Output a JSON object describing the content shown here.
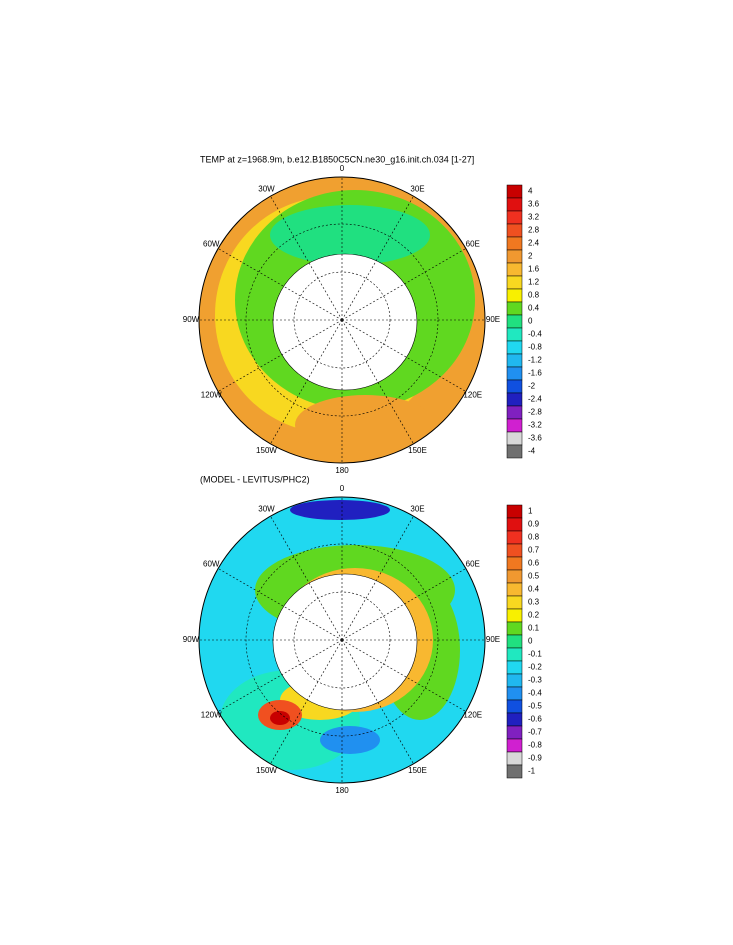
{
  "maps": [
    {
      "title": "TEMP at z=1968.9m, b.e12.B1850C5CN.ne30_g16.init.ch.034 [1-27]",
      "lon_labels": [
        "0",
        "30E",
        "60E",
        "90E",
        "120E",
        "150E",
        "180",
        "150W",
        "120W",
        "90W",
        "60W",
        "30W"
      ],
      "colorbar": {
        "labels": [
          "4",
          "3.6",
          "3.2",
          "2.8",
          "2.4",
          "2",
          "1.6",
          "1.2",
          "0.8",
          "0.4",
          "0",
          "-0.4",
          "-0.8",
          "-1.2",
          "-1.6",
          "-2",
          "-2.4",
          "-2.8",
          "-3.2",
          "-3.6",
          "-4"
        ],
        "colors": [
          "#c80000",
          "#e01010",
          "#f03020",
          "#f05020",
          "#f07820",
          "#f09830",
          "#f8b830",
          "#f8d820",
          "#f8f000",
          "#60d820",
          "#20e080",
          "#20e8c0",
          "#20d8f0",
          "#20b8f0",
          "#2090f0",
          "#1050e0",
          "#2020c0",
          "#8020c0",
          "#d020d0",
          "#d8d8d8",
          "#707070"
        ]
      }
    },
    {
      "title": "(MODEL - LEVITUS/PHC2)",
      "lon_labels": [
        "0",
        "30E",
        "60E",
        "90E",
        "120E",
        "150E",
        "180",
        "150W",
        "120W",
        "90W",
        "60W",
        "30W"
      ],
      "colorbar": {
        "labels": [
          "1",
          "0.9",
          "0.8",
          "0.7",
          "0.6",
          "0.5",
          "0.4",
          "0.3",
          "0.2",
          "0.1",
          "0",
          "-0.1",
          "-0.2",
          "-0.3",
          "-0.4",
          "-0.5",
          "-0.6",
          "-0.7",
          "-0.8",
          "-0.9",
          "-1"
        ],
        "colors": [
          "#c80000",
          "#e01010",
          "#f03020",
          "#f05020",
          "#f07820",
          "#f09830",
          "#f8b830",
          "#f8d820",
          "#f8f000",
          "#60d820",
          "#20e080",
          "#20e8c0",
          "#20d8f0",
          "#20b8f0",
          "#2090f0",
          "#1050e0",
          "#2020c0",
          "#8020c0",
          "#d020d0",
          "#d8d8d8",
          "#707070"
        ]
      }
    }
  ]
}
